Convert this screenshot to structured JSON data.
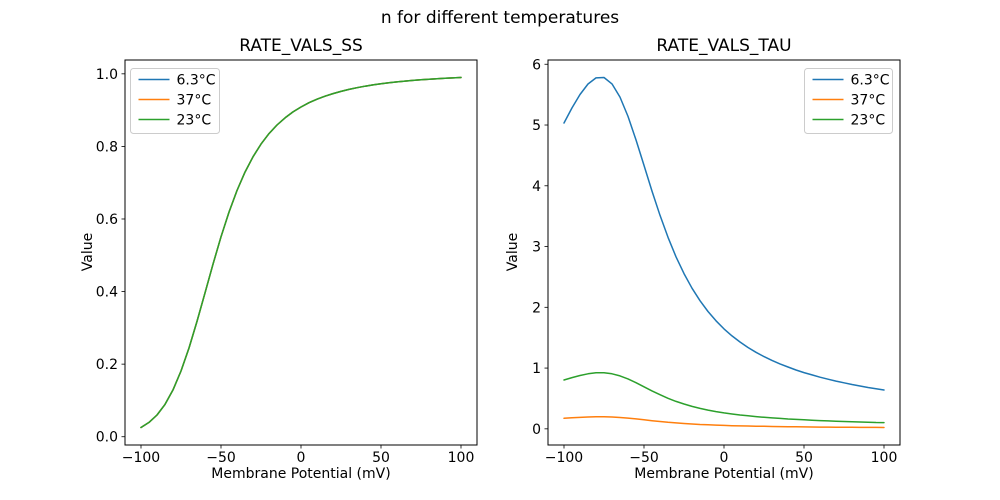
{
  "figure": {
    "suptitle": "n for different temperatures",
    "background": "#ffffff"
  },
  "colors": {
    "series_blue": "#1f77b4",
    "series_orange": "#ff7f0e",
    "series_green": "#2ca02c",
    "legend_border": "#cccccc",
    "axes_stroke": "#000000"
  },
  "chart_data": [
    {
      "id": "ss",
      "type": "line",
      "title": "RATE_VALS_SS",
      "xlabel": "Membrane Potential (mV)",
      "ylabel": "Value",
      "grid": false,
      "legend_position": "upper-left",
      "xlim": [
        -110,
        110
      ],
      "ylim": [
        -0.0228,
        1.0381
      ],
      "xticks": {
        "values": [
          -100,
          -50,
          0,
          50,
          100
        ],
        "labels": [
          "−100",
          "−50",
          "0",
          "50",
          "100"
        ]
      },
      "yticks": {
        "values": [
          0.0,
          0.2,
          0.4,
          0.6,
          0.8,
          1.0
        ],
        "labels": [
          "0.0",
          "0.2",
          "0.4",
          "0.6",
          "0.8",
          "1.0"
        ]
      },
      "x": [
        -100,
        -95,
        -90,
        -85,
        -80,
        -75,
        -70,
        -65,
        -60,
        -55,
        -50,
        -45,
        -40,
        -35,
        -30,
        -25,
        -20,
        -15,
        -10,
        -5,
        0,
        5,
        10,
        15,
        20,
        25,
        30,
        35,
        40,
        45,
        50,
        55,
        60,
        65,
        70,
        75,
        80,
        85,
        90,
        95,
        100
      ],
      "series": [
        {
          "name": "6.3°C",
          "color": "#1f77b4",
          "values": [
            0.0254,
            0.0394,
            0.06,
            0.0892,
            0.1291,
            0.181,
            0.2446,
            0.3177,
            0.3963,
            0.4755,
            0.5508,
            0.6191,
            0.6786,
            0.7292,
            0.7714,
            0.8064,
            0.8352,
            0.859,
            0.8786,
            0.895,
            0.9087,
            0.9203,
            0.9301,
            0.9384,
            0.9456,
            0.9517,
            0.9571,
            0.9617,
            0.9658,
            0.9694,
            0.9725,
            0.9753,
            0.9777,
            0.9799,
            0.9818,
            0.9836,
            0.9851,
            0.9865,
            0.9877,
            0.9888,
            0.9899
          ]
        },
        {
          "name": "37°C",
          "color": "#ff7f0e",
          "values": [
            0.0254,
            0.0394,
            0.06,
            0.0892,
            0.1291,
            0.181,
            0.2446,
            0.3177,
            0.3963,
            0.4755,
            0.5508,
            0.6191,
            0.6786,
            0.7292,
            0.7714,
            0.8064,
            0.8352,
            0.859,
            0.8786,
            0.895,
            0.9087,
            0.9203,
            0.9301,
            0.9384,
            0.9456,
            0.9517,
            0.9571,
            0.9617,
            0.9658,
            0.9694,
            0.9725,
            0.9753,
            0.9777,
            0.9799,
            0.9818,
            0.9836,
            0.9851,
            0.9865,
            0.9877,
            0.9888,
            0.9899
          ]
        },
        {
          "name": "23°C",
          "color": "#2ca02c",
          "values": [
            0.0254,
            0.0394,
            0.06,
            0.0892,
            0.1291,
            0.181,
            0.2446,
            0.3177,
            0.3963,
            0.4755,
            0.5508,
            0.6191,
            0.6786,
            0.7292,
            0.7714,
            0.8064,
            0.8352,
            0.859,
            0.8786,
            0.895,
            0.9087,
            0.9203,
            0.9301,
            0.9384,
            0.9456,
            0.9517,
            0.9571,
            0.9617,
            0.9658,
            0.9694,
            0.9725,
            0.9753,
            0.9777,
            0.9799,
            0.9818,
            0.9836,
            0.9851,
            0.9865,
            0.9877,
            0.9888,
            0.9899
          ]
        }
      ]
    },
    {
      "id": "tau",
      "type": "line",
      "title": "RATE_VALS_TAU",
      "xlabel": "Membrane Potential (mV)",
      "ylabel": "Value",
      "grid": false,
      "legend_position": "upper-right",
      "xlim": [
        -110,
        110
      ],
      "ylim": [
        -0.266,
        6.07
      ],
      "xticks": {
        "values": [
          -100,
          -50,
          0,
          50,
          100
        ],
        "labels": [
          "−100",
          "−50",
          "0",
          "50",
          "100"
        ]
      },
      "yticks": {
        "values": [
          0,
          1,
          2,
          3,
          4,
          5,
          6
        ],
        "labels": [
          "0",
          "1",
          "2",
          "3",
          "4",
          "5",
          "6"
        ]
      },
      "x": [
        -100,
        -95,
        -90,
        -85,
        -80,
        -75,
        -70,
        -65,
        -60,
        -55,
        -50,
        -45,
        -40,
        -35,
        -30,
        -25,
        -20,
        -15,
        -10,
        -5,
        0,
        5,
        10,
        15,
        20,
        25,
        30,
        35,
        40,
        45,
        50,
        55,
        60,
        65,
        70,
        75,
        80,
        85,
        90,
        95,
        100
      ],
      "series": [
        {
          "name": "6.3°C",
          "color": "#1f77b4",
          "values": [
            5.034,
            5.282,
            5.502,
            5.675,
            5.776,
            5.782,
            5.677,
            5.459,
            5.141,
            4.755,
            4.335,
            3.913,
            3.515,
            3.152,
            2.832,
            2.554,
            2.314,
            2.108,
            1.931,
            1.778,
            1.645,
            1.53,
            1.429,
            1.339,
            1.26,
            1.189,
            1.126,
            1.068,
            1.017,
            0.969,
            0.926,
            0.887,
            0.85,
            0.817,
            0.785,
            0.757,
            0.73,
            0.705,
            0.681,
            0.659,
            0.639
          ]
        },
        {
          "name": "37°C",
          "color": "#ff7f0e",
          "values": [
            0.173,
            0.181,
            0.189,
            0.195,
            0.198,
            0.198,
            0.195,
            0.187,
            0.176,
            0.163,
            0.149,
            0.134,
            0.121,
            0.108,
            0.097,
            0.088,
            0.079,
            0.072,
            0.066,
            0.061,
            0.056,
            0.052,
            0.049,
            0.046,
            0.043,
            0.041,
            0.039,
            0.037,
            0.035,
            0.033,
            0.032,
            0.03,
            0.029,
            0.028,
            0.027,
            0.026,
            0.025,
            0.024,
            0.023,
            0.023,
            0.022
          ]
        },
        {
          "name": "23°C",
          "color": "#2ca02c",
          "values": [
            0.804,
            0.843,
            0.878,
            0.906,
            0.922,
            0.923,
            0.906,
            0.872,
            0.821,
            0.759,
            0.692,
            0.625,
            0.561,
            0.503,
            0.452,
            0.408,
            0.369,
            0.337,
            0.308,
            0.284,
            0.263,
            0.244,
            0.228,
            0.214,
            0.201,
            0.19,
            0.18,
            0.171,
            0.162,
            0.155,
            0.148,
            0.142,
            0.136,
            0.13,
            0.125,
            0.121,
            0.117,
            0.113,
            0.109,
            0.105,
            0.102
          ]
        }
      ]
    }
  ]
}
